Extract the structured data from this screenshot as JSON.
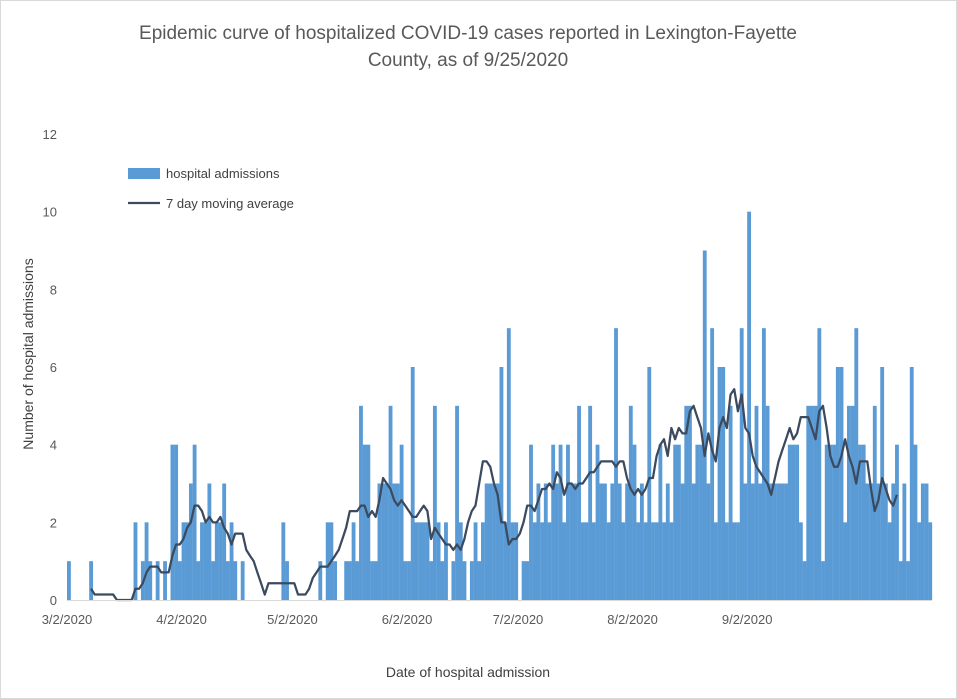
{
  "chart_data": {
    "type": "bar",
    "title_lines": [
      "Epidemic curve of hospitalized COVID-19 cases reported in Lexington-Fayette",
      "County, as of 9/25/2020"
    ],
    "xlabel": "Date of hospital admission",
    "ylabel": "Number of hospital admissions",
    "ylim": [
      0,
      12
    ],
    "yticks": [
      0,
      2,
      4,
      6,
      8,
      10,
      12
    ],
    "start_date": "3/2/2020",
    "end_date": "9/25/2020",
    "x_tick_labels": [
      "3/2/2020",
      "4/2/2020",
      "5/2/2020",
      "6/2/2020",
      "7/2/2020",
      "8/2/2020",
      "9/2/2020"
    ],
    "colors": {
      "bars": "#5b9bd5",
      "line": "#3b4a5e",
      "text": "#595959"
    },
    "legend_position": "top-left",
    "series": [
      {
        "name": "hospital admissions",
        "type": "bar",
        "values": [
          1,
          0,
          0,
          0,
          0,
          0,
          1,
          0,
          0,
          0,
          0,
          0,
          0,
          0,
          0,
          0,
          0,
          0,
          2,
          0,
          1,
          2,
          1,
          0,
          1,
          0,
          1,
          0,
          4,
          4,
          1,
          2,
          2,
          3,
          4,
          1,
          2,
          2,
          3,
          1,
          2,
          2,
          3,
          1,
          2,
          1,
          0,
          1,
          0,
          0,
          0,
          0,
          0,
          0,
          0,
          0,
          0,
          0,
          2,
          1,
          0,
          0,
          0,
          0,
          0,
          0,
          0,
          0,
          1,
          0,
          2,
          2,
          1,
          0,
          0,
          1,
          1,
          2,
          1,
          5,
          4,
          4,
          1,
          1,
          3,
          3,
          3,
          5,
          3,
          3,
          4,
          1,
          1,
          6,
          2,
          2,
          2,
          2,
          1,
          5,
          2,
          1,
          2,
          0,
          1,
          5,
          2,
          1,
          0,
          1,
          2,
          1,
          2,
          3,
          3,
          3,
          3,
          6,
          2,
          7,
          2,
          2,
          0,
          1,
          1,
          4,
          2,
          3,
          2,
          3,
          2,
          4,
          3,
          4,
          2,
          4,
          3,
          3,
          5,
          2,
          2,
          5,
          2,
          4,
          3,
          3,
          2,
          3,
          7,
          3,
          2,
          3,
          5,
          4,
          2,
          3,
          2,
          6,
          2,
          2,
          4,
          2,
          3,
          2,
          4,
          4,
          3,
          5,
          5,
          3,
          4,
          4,
          9,
          3,
          7,
          2,
          6,
          6,
          2,
          5,
          2,
          2,
          7,
          3,
          10,
          3,
          5,
          3,
          7,
          5,
          3,
          3,
          3,
          3,
          3,
          4,
          4,
          4,
          2,
          1,
          5,
          5,
          5,
          7,
          1,
          4,
          4,
          4,
          6,
          6,
          2,
          5,
          5,
          7,
          4,
          4,
          3,
          3,
          5,
          3,
          6,
          3,
          2,
          3,
          4,
          1,
          3,
          1,
          6,
          4,
          2,
          3,
          3,
          2
        ]
      },
      {
        "name": "7 day moving average",
        "type": "line",
        "values": [
          null,
          null,
          null,
          null,
          null,
          null,
          0.29,
          0.14,
          0.14,
          0.14,
          0.14,
          0.14,
          0.14,
          0.0,
          0.0,
          0.0,
          0.0,
          0.0,
          0.29,
          0.29,
          0.43,
          0.71,
          0.86,
          0.86,
          0.86,
          0.71,
          0.71,
          0.71,
          1.14,
          1.43,
          1.43,
          1.57,
          1.86,
          2.0,
          2.43,
          2.43,
          2.29,
          2.0,
          2.14,
          2.0,
          2.0,
          2.14,
          1.86,
          1.71,
          1.43,
          1.71,
          1.71,
          1.71,
          1.29,
          1.14,
          1.0,
          0.71,
          0.43,
          0.14,
          0.43,
          0.43,
          0.43,
          0.43,
          0.43,
          0.43,
          0.43,
          0.43,
          0.14,
          0.14,
          0.14,
          0.29,
          0.57,
          0.71,
          0.86,
          0.86,
          0.86,
          1.0,
          1.14,
          1.29,
          1.57,
          1.86,
          2.29,
          2.29,
          2.29,
          2.43,
          2.43,
          2.14,
          2.29,
          2.14,
          2.57,
          3.14,
          3.0,
          2.86,
          2.57,
          2.43,
          2.57,
          2.43,
          2.29,
          2.14,
          2.14,
          2.29,
          2.43,
          2.29,
          1.57,
          1.86,
          1.71,
          1.57,
          1.43,
          1.43,
          1.29,
          1.43,
          1.29,
          1.57,
          2.0,
          2.29,
          2.43,
          3.0,
          3.57,
          3.57,
          3.43,
          3.0,
          2.71,
          2.0,
          2.0,
          1.43,
          1.57,
          1.57,
          1.71,
          2.0,
          2.43,
          2.43,
          2.29,
          2.57,
          2.86,
          2.86,
          3.0,
          2.86,
          3.29,
          3.14,
          2.71,
          3.0,
          3.0,
          2.86,
          3.0,
          3.0,
          3.14,
          3.29,
          3.29,
          3.43,
          3.57,
          3.57,
          3.57,
          3.57,
          3.43,
          3.57,
          3.57,
          3.14,
          2.86,
          2.71,
          2.86,
          2.71,
          2.86,
          3.14,
          3.14,
          3.71,
          4.0,
          4.14,
          3.71,
          4.43,
          4.14,
          4.43,
          4.29,
          4.29,
          4.86,
          5.0,
          4.71,
          4.43,
          3.71,
          4.29,
          3.86,
          3.57,
          4.43,
          4.71,
          4.43,
          5.29,
          5.43,
          4.86,
          5.29,
          4.43,
          4.29,
          3.71,
          3.43,
          3.29,
          3.14,
          3.0,
          2.71,
          3.14,
          3.57,
          3.86,
          4.14,
          4.43,
          4.14,
          4.29,
          4.71,
          4.71,
          4.71,
          4.43,
          4.14,
          4.86,
          5.0,
          4.43,
          3.71,
          3.43,
          3.43,
          3.71,
          4.14,
          3.71,
          3.43,
          3.0,
          3.57,
          3.57,
          3.57,
          2.86,
          2.29,
          2.57,
          3.14,
          2.86,
          2.57,
          2.43,
          2.71
        ]
      }
    ]
  }
}
